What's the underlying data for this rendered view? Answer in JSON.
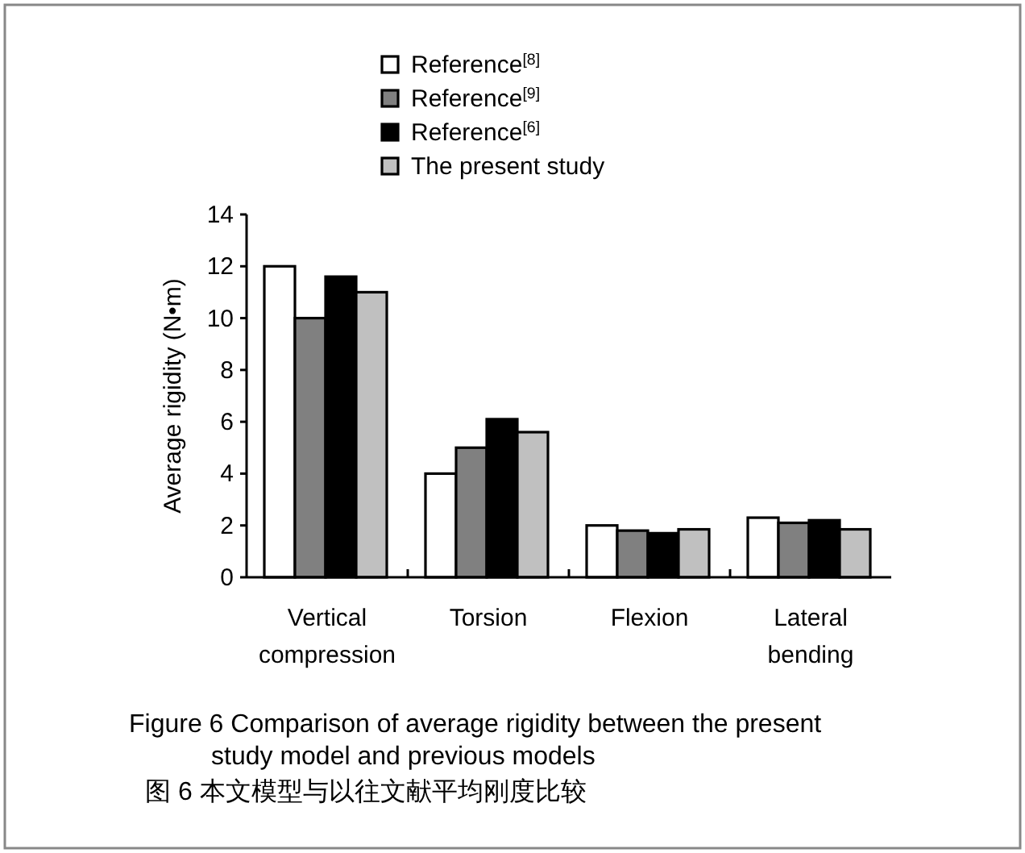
{
  "chart_data": {
    "type": "bar",
    "categories": [
      "Vertical compression",
      "Torsion",
      "Flexion",
      "Lateral bending"
    ],
    "series": [
      {
        "name": "Reference$^{[8]}$",
        "color": "#ffffff",
        "values": [
          12,
          4,
          2.0,
          2.3
        ]
      },
      {
        "name": "Reference$^{[9]}$",
        "color": "#808080",
        "values": [
          10,
          5,
          1.8,
          2.1
        ]
      },
      {
        "name": "Reference$^{[6]}$",
        "color": "#000000",
        "values": [
          11.6,
          6.1,
          1.7,
          2.2
        ]
      },
      {
        "name": "The present study",
        "color": "#c0c0c0",
        "values": [
          11,
          5.6,
          1.85,
          1.85
        ]
      }
    ],
    "ylabel": "Average rigidity (N•m)",
    "ylim": [
      0,
      14
    ],
    "yticks": [
      0,
      2,
      4,
      6,
      8,
      10,
      12,
      14
    ],
    "grid": false,
    "legend": "top",
    "annotations": [
      "Figure 6    Comparison of average rigidity between the present study model and previous models",
      "图 6    本文模型与以往文献平均刚度比较"
    ]
  }
}
